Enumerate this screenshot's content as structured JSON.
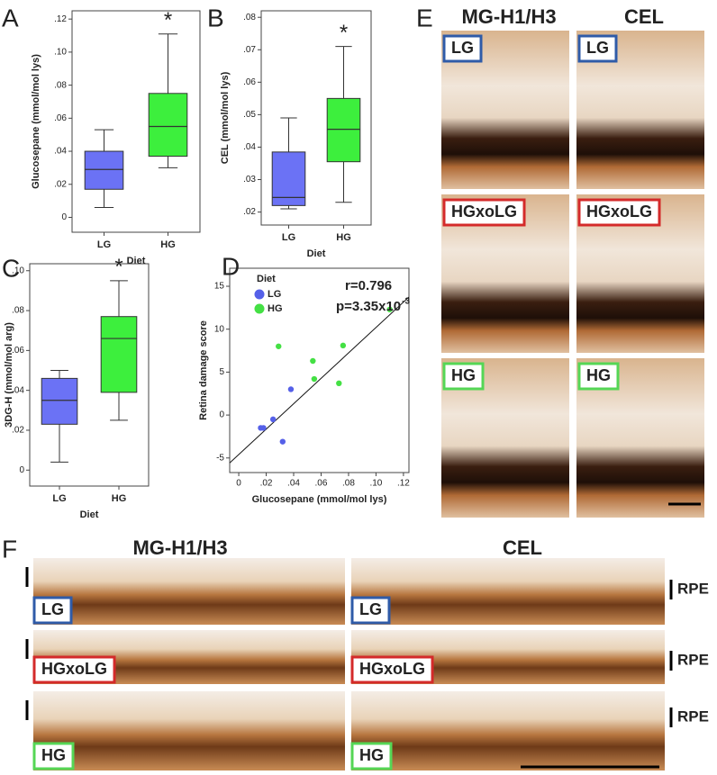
{
  "chart_data": [
    {
      "panel": "A",
      "type": "box",
      "ylabel": "Glucosepane (mmol/mol lys)",
      "xlabel": "Diet",
      "categories": [
        "LG",
        "HG"
      ],
      "colors": [
        "#6b72f5",
        "#3def3d"
      ],
      "boxes": [
        {
          "whislo": 0.006,
          "q1": 0.017,
          "med": 0.029,
          "q3": 0.04,
          "whishi": 0.053
        },
        {
          "whislo": 0.03,
          "q1": 0.037,
          "med": 0.055,
          "q3": 0.075,
          "whishi": 0.111
        }
      ],
      "annotation": "*",
      "ylim": [
        -0.009,
        0.125
      ],
      "yticks": [
        0,
        {
          "value": 0.02,
          "label": ".02"
        },
        {
          "value": 0.04,
          "label": ".04"
        },
        {
          "value": 0.06,
          "label": ".06"
        },
        {
          "value": 0.08,
          "label": ".08"
        },
        {
          "value": 0.1,
          "label": ".10"
        },
        {
          "value": 0.12,
          "label": ".12"
        }
      ]
    },
    {
      "panel": "B",
      "type": "box",
      "ylabel": "CEL (mmol/mol lys)",
      "xlabel": "Diet",
      "categories": [
        "LG",
        "HG"
      ],
      "colors": [
        "#6b72f5",
        "#3def3d"
      ],
      "boxes": [
        {
          "whislo": 0.021,
          "q1": 0.022,
          "med": 0.0245,
          "q3": 0.0385,
          "whishi": 0.049
        },
        {
          "whislo": 0.023,
          "q1": 0.0355,
          "med": 0.0455,
          "q3": 0.055,
          "whishi": 0.071
        }
      ],
      "annotation": "*",
      "ylim": [
        0.016,
        0.082
      ],
      "yticks": [
        {
          "value": 0.02,
          "label": ".02"
        },
        {
          "value": 0.03,
          "label": ".03"
        },
        {
          "value": 0.04,
          "label": ".04"
        },
        {
          "value": 0.05,
          "label": ".05"
        },
        {
          "value": 0.06,
          "label": ".06"
        },
        {
          "value": 0.07,
          "label": ".07"
        },
        {
          "value": 0.08,
          "label": ".08"
        }
      ]
    },
    {
      "panel": "C",
      "type": "box",
      "ylabel": "3DG-H (mmol/mol arg)",
      "xlabel": "Diet",
      "categories": [
        "LG",
        "HG"
      ],
      "colors": [
        "#6b72f5",
        "#3def3d"
      ],
      "boxes": [
        {
          "whislo": 0.004,
          "q1": 0.023,
          "med": 0.035,
          "q3": 0.046,
          "whishi": 0.05
        },
        {
          "whislo": 0.025,
          "q1": 0.039,
          "med": 0.066,
          "q3": 0.077,
          "whishi": 0.095
        }
      ],
      "annotation": "*",
      "ylim": [
        -0.008,
        0.1035
      ],
      "yticks": [
        0,
        {
          "value": 0.02,
          "label": ".02"
        },
        {
          "value": 0.04,
          "label": ".04"
        },
        {
          "value": 0.06,
          "label": ".06"
        },
        {
          "value": 0.08,
          "label": ".08"
        },
        {
          "value": 0.1,
          "label": ".10"
        }
      ]
    },
    {
      "panel": "D",
      "type": "scatter",
      "xlabel": "Glucosepane (mmol/mol lys)",
      "ylabel": "Retina damage score",
      "legend_title": "Diet",
      "legend": "upper left",
      "series": [
        {
          "name": "LG",
          "color": "#5560e8",
          "x": [
            0.016,
            0.018,
            0.025,
            0.032,
            0.038
          ],
          "y": [
            -1.5,
            -1.5,
            -0.5,
            -3.1,
            3.0
          ]
        },
        {
          "name": "HG",
          "color": "#44e044",
          "x": [
            0.029,
            0.054,
            0.055,
            0.073,
            0.076,
            0.11
          ],
          "y": [
            8.0,
            6.3,
            4.2,
            3.7,
            8.1,
            12.3
          ]
        }
      ],
      "fit_line": {
        "slope": 148,
        "intercept": -4.6
      },
      "annotations": [
        "r=0.796",
        "p=3.35x10",
        "-3"
      ],
      "xlim": [
        -0.0066,
        0.124
      ],
      "ylim": [
        -6.7,
        17.1
      ],
      "xticks": [
        0,
        {
          "value": 0.02,
          "label": ".02"
        },
        {
          "value": 0.04,
          "label": ".04"
        },
        {
          "value": 0.06,
          "label": ".06"
        },
        {
          "value": 0.08,
          "label": ".08"
        },
        {
          "value": 0.1,
          "label": ".10"
        },
        {
          "value": 0.12,
          "label": ".12"
        }
      ],
      "yticks": [
        -5,
        0,
        5,
        10,
        15
      ]
    }
  ],
  "micrographs": [
    {
      "panel": "E",
      "columns": [
        "MG-H1/H3",
        "CEL"
      ],
      "rows": [
        {
          "label": "LG",
          "color": "#2f5ba8"
        },
        {
          "label": "HGxoLG",
          "color": "#d42a2a"
        },
        {
          "label": "HG",
          "color": "#55d655"
        }
      ]
    },
    {
      "panel": "F",
      "columns": [
        "MG-H1/H3",
        "CEL"
      ],
      "side_label": "RPE",
      "rows": [
        {
          "label": "LG",
          "color": "#2f5ba8"
        },
        {
          "label": "HGxoLG",
          "color": "#d42a2a"
        },
        {
          "label": "HG",
          "color": "#55d655"
        }
      ]
    }
  ]
}
